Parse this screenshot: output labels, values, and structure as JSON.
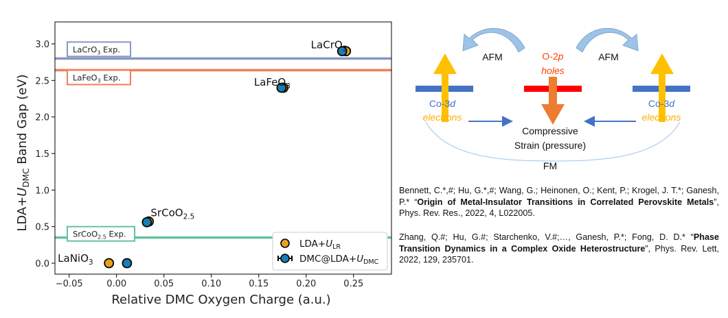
{
  "chart_data": {
    "type": "scatter",
    "title": "",
    "xlabel": "Relative DMC Oxygen Charge (a.u.)",
    "ylabel": {
      "pre": "LDA+",
      "U": "U",
      "sub": "DMC",
      "post": " Band Gap (eV)"
    },
    "xlim": [
      -0.065,
      0.29
    ],
    "ylim": [
      -0.15,
      3.3
    ],
    "xticks": [
      -0.05,
      0.0,
      0.05,
      0.1,
      0.15,
      0.2,
      0.25
    ],
    "xtick_labels": [
      "−0.05",
      "0.00",
      "0.05",
      "0.10",
      "0.15",
      "0.20",
      "0.25"
    ],
    "yticks": [
      0.0,
      0.5,
      1.0,
      1.5,
      2.0,
      2.5,
      3.0
    ],
    "ytick_labels": [
      "0.0",
      "0.5",
      "1.0",
      "1.5",
      "2.0",
      "2.5",
      "3.0"
    ],
    "grid": false,
    "legend_position": "bottom-right",
    "series": [
      {
        "legend": {
          "pre": "LDA+",
          "U": "U",
          "sub": "LR"
        },
        "color": "#E8A020",
        "x": [
          -0.008,
          0.034,
          0.176,
          0.242
        ],
        "y": [
          0.0,
          0.57,
          2.4,
          2.9
        ]
      },
      {
        "legend": {
          "pre": "DMC@LDA+",
          "U": "U",
          "sub": "DMC"
        },
        "color": "#1A7DB5",
        "x": [
          0.011,
          0.032,
          0.174,
          0.238
        ],
        "y": [
          0.0,
          0.56,
          2.4,
          2.9
        ],
        "error_bars": true
      }
    ],
    "reference_lines": [
      {
        "y": 2.8,
        "color": "#8796C3",
        "label": {
          "pre": "LaCrO",
          "sub": "3",
          "post": " Exp."
        }
      },
      {
        "y": 2.64,
        "color": "#F07D5A",
        "label": {
          "pre": "LaFeO",
          "sub": "3",
          "post": " Exp."
        }
      },
      {
        "y": 0.35,
        "color": "#63C2A0",
        "label": {
          "pre": "SrCoO",
          "sub": "2.5",
          "post": " Exp."
        }
      }
    ],
    "point_labels": [
      {
        "pre": "LaNiO",
        "sub": "3",
        "x": -0.062,
        "y": 0.02
      },
      {
        "pre": "SrCoO",
        "sub": "2.5",
        "x": 0.036,
        "y": 0.64
      },
      {
        "pre": "LaFeO",
        "sub": "3",
        "x": 0.145,
        "y": 2.43
      },
      {
        "pre": "LaCrO",
        "sub": "3",
        "x": 0.205,
        "y": 2.94
      }
    ]
  },
  "diagram": {
    "afm_left": "AFM",
    "afm_right": "AFM",
    "o2p_line1": "O-2",
    "o2p_p": "p",
    "o2p_holes": "holes",
    "co3d_pre": "Co-3",
    "co3d_d": "d",
    "electrons": "electrons",
    "compressive": "Compressive",
    "strain": "Strain (pressure)",
    "fm": "FM",
    "colors": {
      "blue_bar": "#4472C4",
      "red_bar": "#FF0000",
      "yellow_arrow": "#FFC000",
      "orange_arrow": "#ED7D31",
      "orange_text": "#FF4000",
      "curved_arrow": "#9DC3E6"
    }
  },
  "references": [
    {
      "authors": "Bennett, C.*,#; Hu, G.*,#; Wang, G.; Heinonen, O.; Kent, P.; Krogel, J. T.*; Ganesh, P.*",
      "title": "Origin of Metal-Insulator Transitions in Correlated Perovskite Metals",
      "journal": ", Phys. Rev. Res., 2022, 4, L022005."
    },
    {
      "authors": "Zhang, Q.#; Hu, G.#; Starchenko, V.#;…, Ganesh, P.*; Fong, D. D.*",
      "title": "Phase Transition Dynamics in a Complex Oxide Heterostructure",
      "journal": ", Phys. Rev. Lett, 2022, 129, 235701."
    }
  ]
}
